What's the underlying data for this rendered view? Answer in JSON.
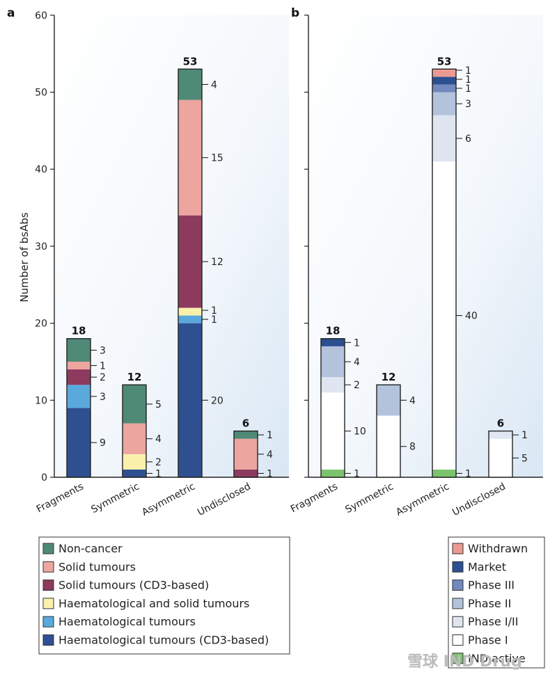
{
  "chart_data": [
    {
      "type": "bar",
      "stacked": true,
      "panel_letter": "a",
      "ylabel": "Number of bsAbs",
      "ylim": [
        0,
        60
      ],
      "yticks": [
        0,
        10,
        20,
        30,
        40,
        50,
        60
      ],
      "categories": [
        "Fragments",
        "Symmetric",
        "Asymmetric",
        "Undisclosed"
      ],
      "totals": [
        18,
        12,
        53,
        6
      ],
      "series": [
        {
          "name": "Haematological tumours (CD3-based)",
          "color": "#2e5090",
          "values": [
            9,
            1,
            20,
            0
          ]
        },
        {
          "name": "Haematological tumours",
          "color": "#5aa9dc",
          "values": [
            3,
            0,
            1,
            0
          ]
        },
        {
          "name": "Haematological and solid tumours",
          "color": "#fbf0ac",
          "values": [
            0,
            2,
            1,
            0
          ]
        },
        {
          "name": "Solid tumours (CD3-based)",
          "color": "#8c3a5e",
          "values": [
            2,
            0,
            12,
            1
          ]
        },
        {
          "name": "Solid tumours",
          "color": "#eda5a0",
          "values": [
            1,
            4,
            15,
            4
          ]
        },
        {
          "name": "Non-cancer",
          "color": "#4f8a77",
          "values": [
            3,
            5,
            4,
            1
          ]
        }
      ],
      "legend": [
        "Non-cancer",
        "Solid tumours",
        "Solid tumours (CD3-based)",
        "Haematological and solid tumours",
        "Haematological tumours",
        "Haematological tumours (CD3-based)"
      ]
    },
    {
      "type": "bar",
      "stacked": true,
      "panel_letter": "b",
      "ylim": [
        0,
        60
      ],
      "categories": [
        "Fragments",
        "Symmetric",
        "Asymmetric",
        "Undisclosed"
      ],
      "totals": [
        18,
        12,
        53,
        6
      ],
      "series": [
        {
          "name": "IND active",
          "color": "#7cc36e",
          "values": [
            1,
            0,
            1,
            0
          ]
        },
        {
          "name": "Phase I",
          "color": "#ffffff",
          "values": [
            10,
            8,
            40,
            5
          ]
        },
        {
          "name": "Phase I/II",
          "color": "#dfe6f1",
          "values": [
            2,
            0,
            6,
            1
          ]
        },
        {
          "name": "Phase II",
          "color": "#b3c3dc",
          "values": [
            4,
            4,
            3,
            0
          ]
        },
        {
          "name": "Phase III",
          "color": "#7189bd",
          "values": [
            0,
            0,
            1,
            0
          ]
        },
        {
          "name": "Market",
          "color": "#2b4f91",
          "values": [
            1,
            0,
            1,
            0
          ]
        },
        {
          "name": "Withdrawn",
          "color": "#eb9a93",
          "values": [
            0,
            0,
            1,
            0
          ]
        }
      ],
      "legend": [
        "Withdrawn",
        "Market",
        "Phase III",
        "Phase II",
        "Phase I/II",
        "Phase I",
        "IND active"
      ]
    }
  ],
  "watermark": "雪球  IND Drug"
}
